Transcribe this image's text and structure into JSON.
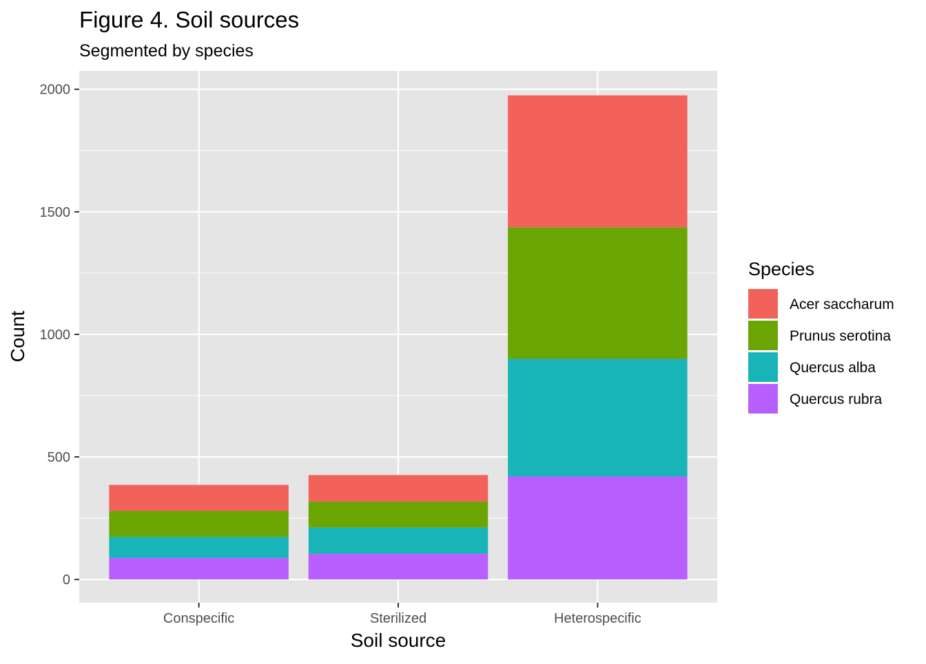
{
  "chart_data": {
    "type": "bar",
    "stacked": true,
    "title": "Figure 4. Soil sources",
    "subtitle": "Segmented by species",
    "xlabel": "Soil source",
    "ylabel": "Count",
    "ylim": [
      -95,
      2075
    ],
    "yticks": [
      0,
      500,
      1000,
      1500,
      2000
    ],
    "y_minor_gridlines": [
      250,
      750,
      1250,
      1750
    ],
    "grid": true,
    "legend": {
      "title": "Species",
      "position": "right"
    },
    "categories": [
      "Conspecific",
      "Sterilized",
      "Heterospecific"
    ],
    "series": [
      {
        "name": "Quercus rubra",
        "color": "#B75FFF",
        "values": [
          88,
          105,
          420
        ]
      },
      {
        "name": "Quercus alba",
        "color": "#19B4B7",
        "values": [
          86,
          107,
          480
        ]
      },
      {
        "name": "Prunus serotina",
        "color": "#6BA503",
        "values": [
          106,
          106,
          537
        ]
      },
      {
        "name": "Acer saccharum",
        "color": "#F3615B",
        "values": [
          106,
          108,
          538
        ]
      }
    ],
    "stack_order_top_to_bottom": [
      "Acer saccharum",
      "Prunus serotina",
      "Quercus alba",
      "Quercus rubra"
    ],
    "panel_background": "#E5E5E5",
    "gridline_color": "#FFFFFF"
  }
}
